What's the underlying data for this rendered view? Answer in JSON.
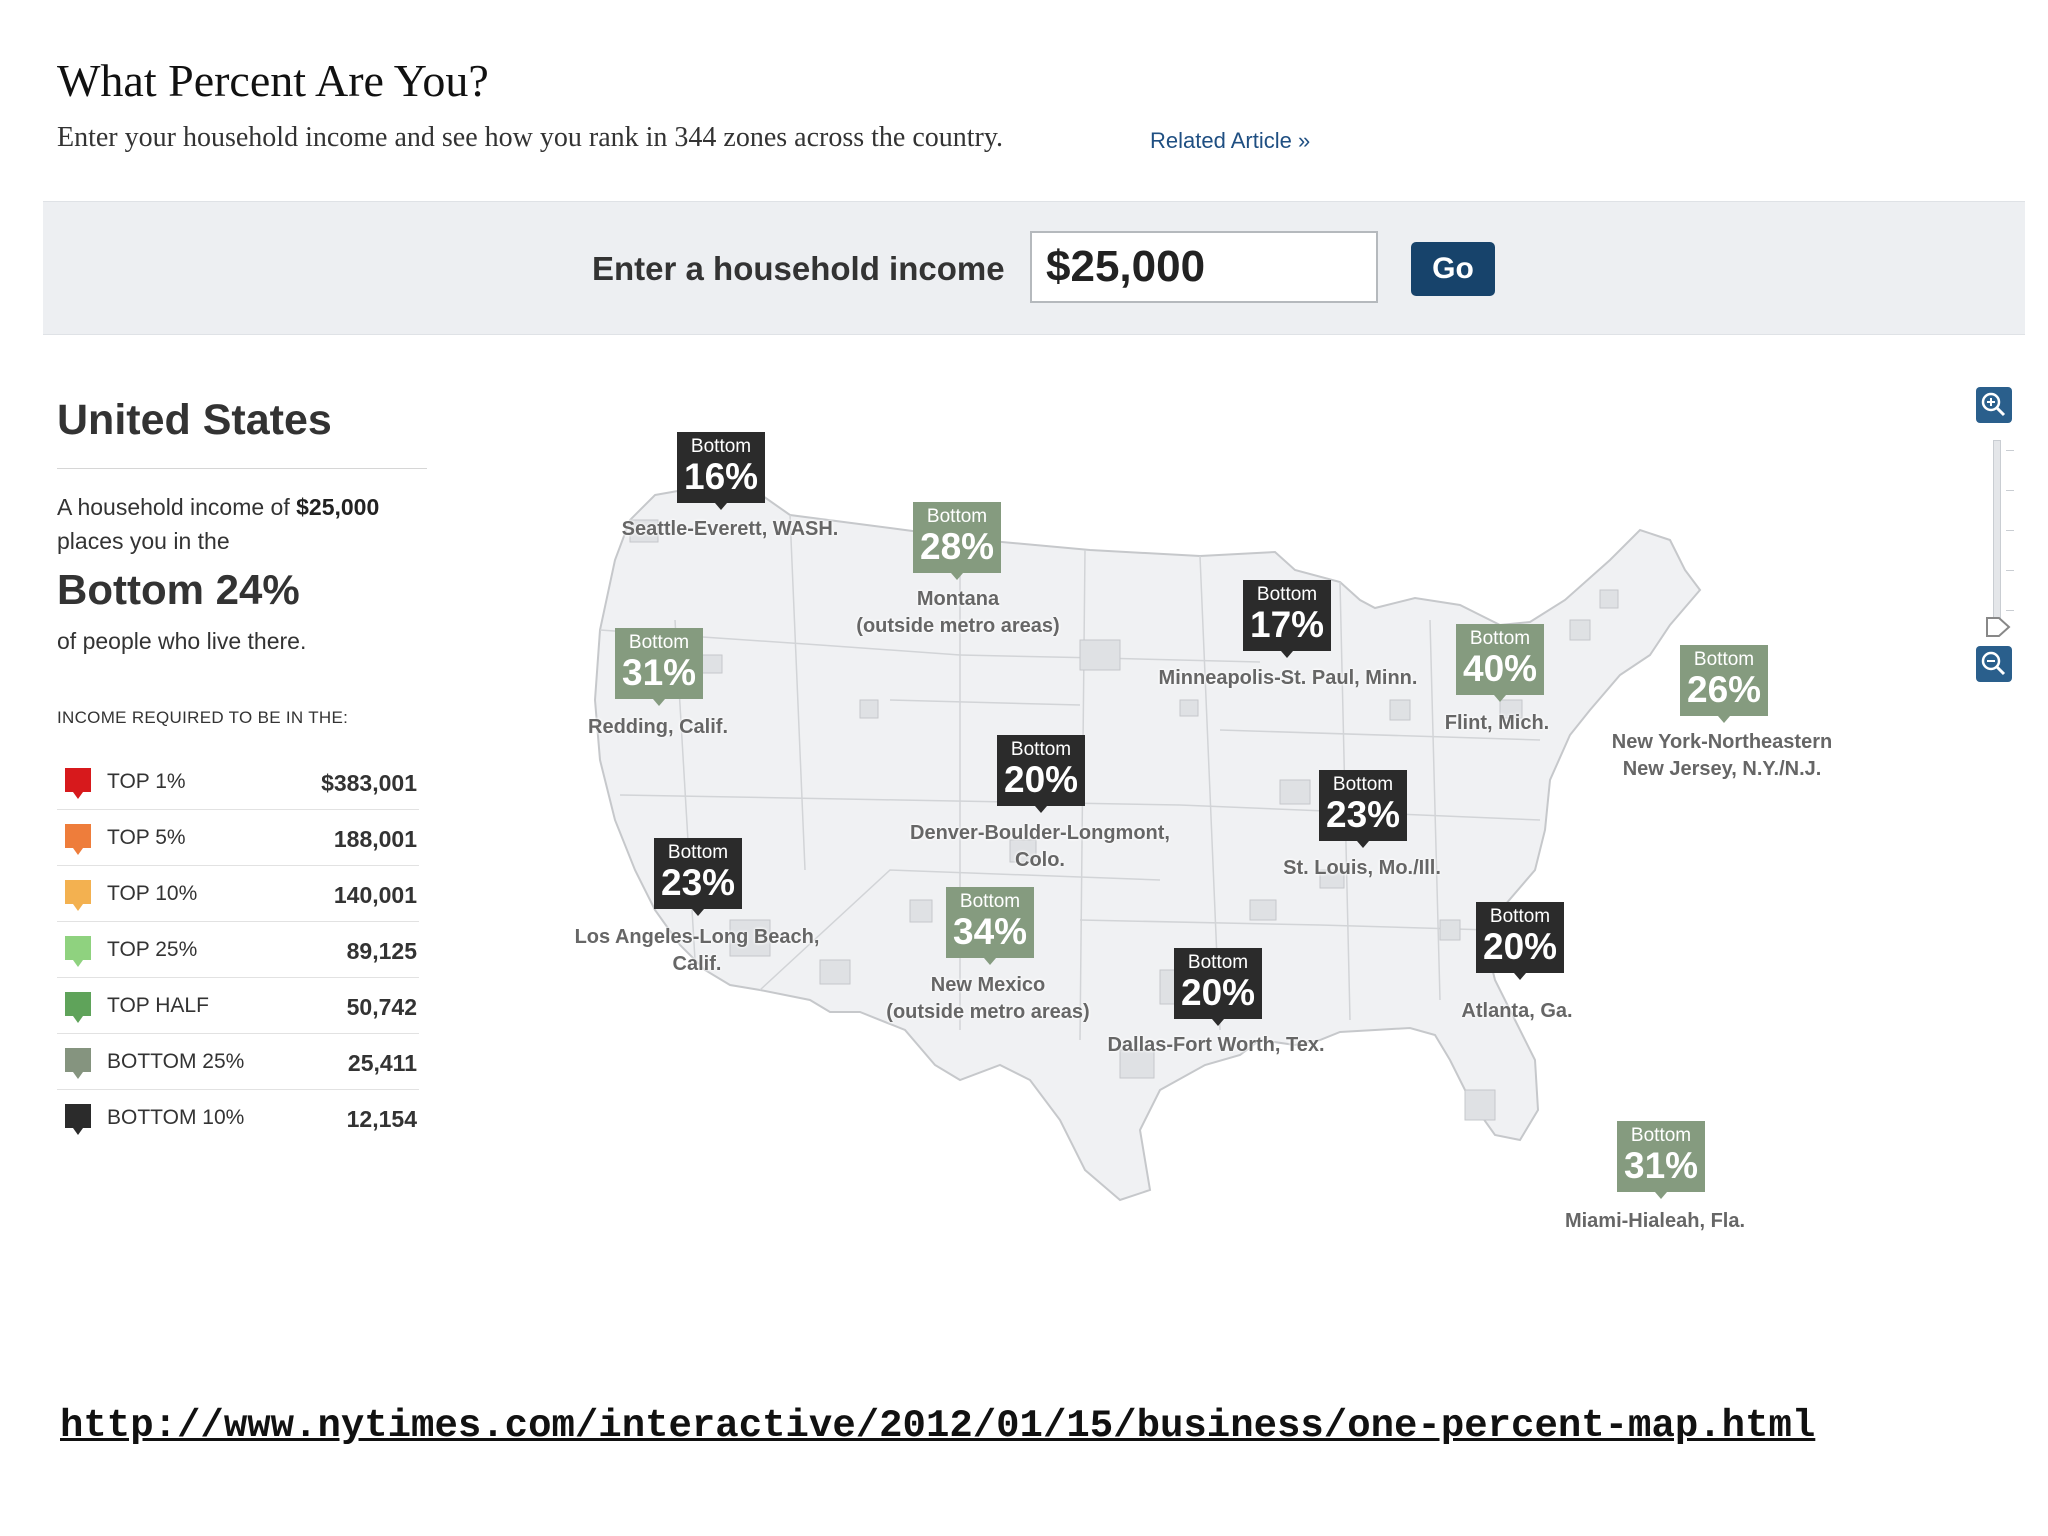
{
  "header": {
    "title": "What Percent Are You?",
    "subtitle": "Enter your household income and see how you rank in 344 zones across the country.",
    "related_link": "Related Article »"
  },
  "income_form": {
    "label": "Enter a household income",
    "value": "$25,000",
    "go_label": "Go"
  },
  "summary": {
    "region": "United States",
    "line_prefix": "A household income of",
    "line_amount": "$25,000",
    "line_suffix": "places you in the",
    "rank": "Bottom 24%",
    "rank_tail": "of people who live there.",
    "legend_heading": "INCOME REQUIRED TO BE IN THE:"
  },
  "legend": [
    {
      "label": "TOP 1%",
      "value": "$383,001",
      "color": "#d7191c"
    },
    {
      "label": "TOP 5%",
      "value": "188,001",
      "color": "#ee7d3b"
    },
    {
      "label": "TOP 10%",
      "value": "140,001",
      "color": "#f3b150"
    },
    {
      "label": "TOP 25%",
      "value": "89,125",
      "color": "#8fd27f"
    },
    {
      "label": "TOP HALF",
      "value": "50,742",
      "color": "#5fa35a"
    },
    {
      "label": "BOTTOM 25%",
      "value": "25,411",
      "color": "#85947f"
    },
    {
      "label": "BOTTOM 10%",
      "value": "12,154",
      "color": "#2b2b2b"
    }
  ],
  "markers": [
    {
      "word": "Bottom",
      "pct": "16%",
      "style": "dark",
      "place": "Seattle-Everett, WASH."
    },
    {
      "word": "Bottom",
      "pct": "28%",
      "style": "light",
      "place": "Montana\n(outside metro areas)"
    },
    {
      "word": "Bottom",
      "pct": "31%",
      "style": "light",
      "place": "Redding, Calif."
    },
    {
      "word": "Bottom",
      "pct": "17%",
      "style": "dark",
      "place": "Minneapolis-St. Paul, Minn."
    },
    {
      "word": "Bottom",
      "pct": "40%",
      "style": "light",
      "place": "Flint, Mich."
    },
    {
      "word": "Bottom",
      "pct": "26%",
      "style": "light",
      "place": "New York-Northeastern\nNew Jersey, N.Y./N.J."
    },
    {
      "word": "Bottom",
      "pct": "20%",
      "style": "dark",
      "place": "Denver-Boulder-Longmont,\nColo."
    },
    {
      "word": "Bottom",
      "pct": "23%",
      "style": "dark",
      "place": "St. Louis, Mo./Ill."
    },
    {
      "word": "Bottom",
      "pct": "23%",
      "style": "dark",
      "place": "Los Angeles-Long Beach,\nCalif."
    },
    {
      "word": "Bottom",
      "pct": "34%",
      "style": "light",
      "place": "New Mexico\n(outside metro areas)"
    },
    {
      "word": "Bottom",
      "pct": "20%",
      "style": "dark",
      "place": "Dallas-Fort Worth, Tex."
    },
    {
      "word": "Bottom",
      "pct": "20%",
      "style": "dark",
      "place": "Atlanta, Ga."
    },
    {
      "word": "Bottom",
      "pct": "31%",
      "style": "light",
      "place": "Miami-Hialeah, Fla."
    }
  ],
  "map_controls": {
    "zoom_in_icon": "zoom-in-icon",
    "zoom_out_icon": "zoom-out-icon"
  },
  "footer": {
    "url": "http://www.nytimes.com/interactive/2012/01/15/business/one-percent-map.html"
  }
}
